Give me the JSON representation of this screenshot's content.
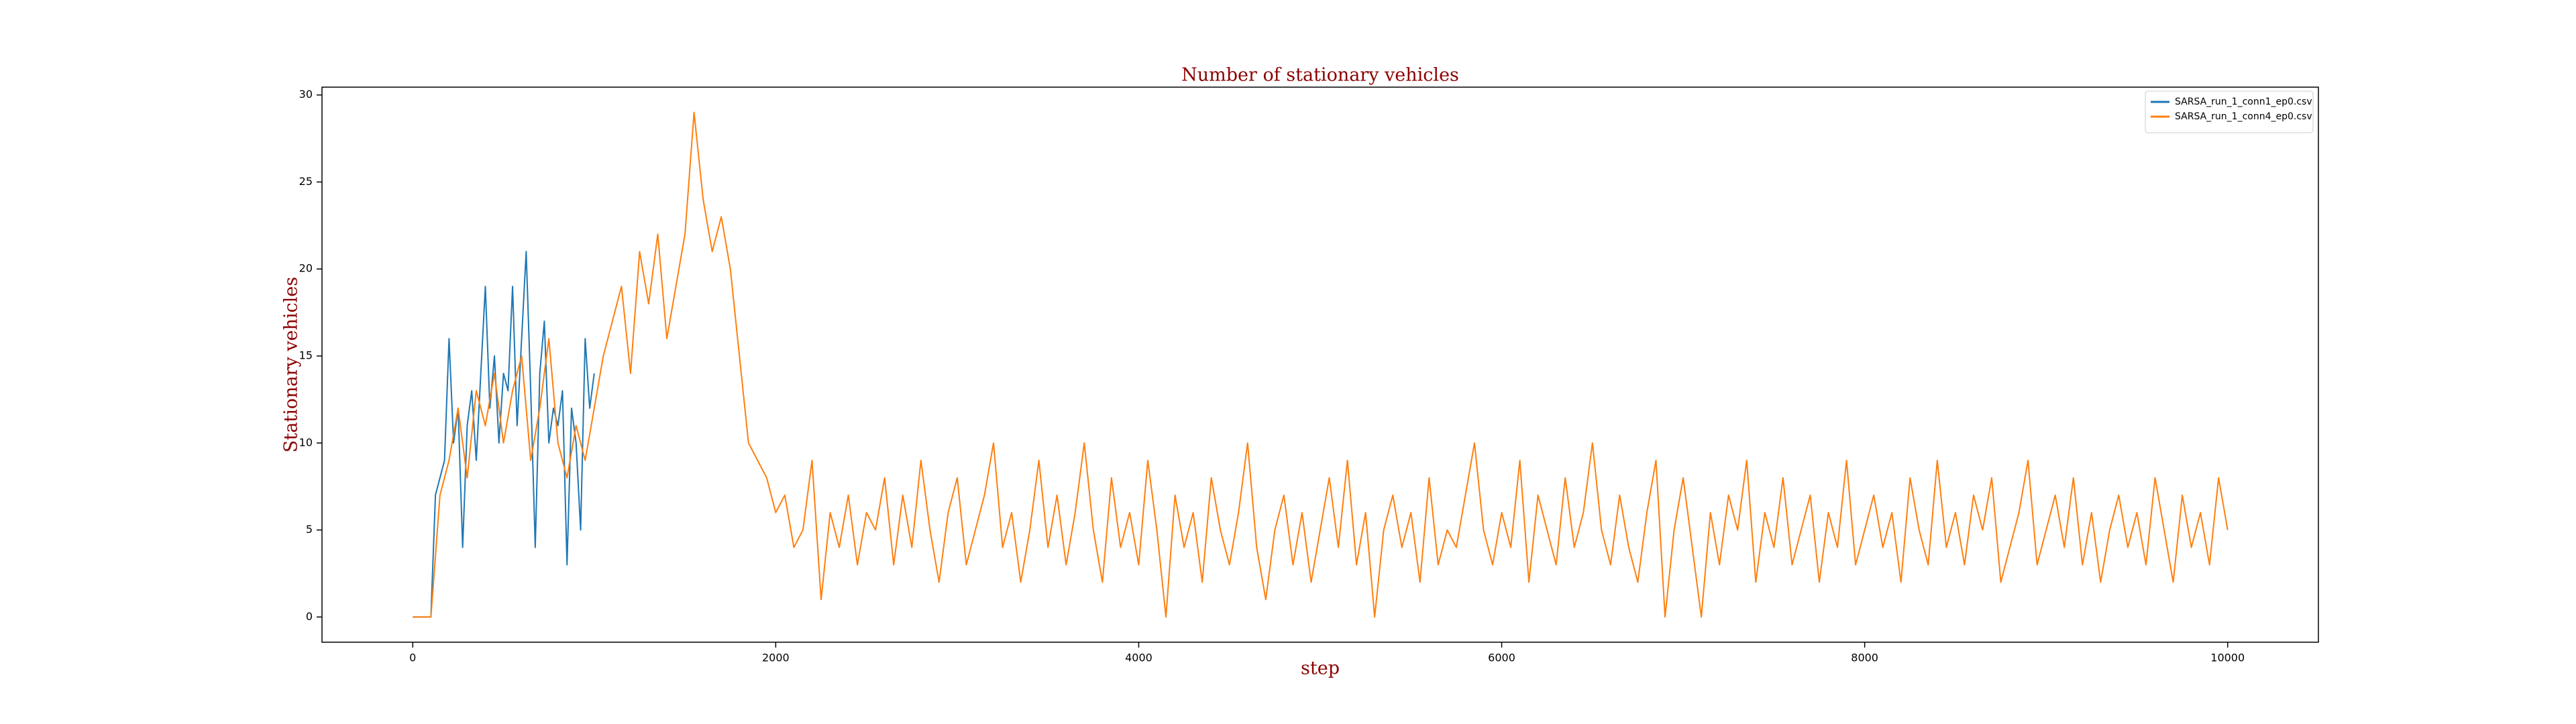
{
  "chart_data": {
    "type": "line",
    "title": "Number of stationary vehicles",
    "xlabel": "step",
    "ylabel": "Stationary vehicles",
    "xlim": [
      -500,
      10500
    ],
    "ylim": [
      -1.45,
      30.45
    ],
    "xticks": [
      0,
      2000,
      4000,
      6000,
      8000,
      10000
    ],
    "yticks": [
      0,
      5,
      10,
      15,
      20,
      25,
      30
    ],
    "grid": false,
    "legend": "upper right",
    "series": [
      {
        "name": "SARSA_run_1_conn1_ep0.csv",
        "color": "#1f77b4",
        "x": [
          0,
          25,
          50,
          75,
          100,
          125,
          150,
          175,
          200,
          225,
          250,
          275,
          300,
          325,
          350,
          375,
          400,
          425,
          450,
          475,
          500,
          525,
          550,
          575,
          600,
          625,
          650,
          675,
          700,
          725,
          750,
          775,
          800,
          825,
          850,
          875,
          900,
          925,
          950,
          975,
          1000
        ],
        "values": [
          0,
          0,
          0,
          0,
          0,
          7,
          8,
          9,
          16,
          10,
          12,
          4,
          11,
          13,
          9,
          14,
          19,
          12,
          15,
          10,
          14,
          13,
          19,
          11,
          16,
          21,
          13,
          4,
          14,
          17,
          10,
          12,
          11,
          13,
          3,
          12,
          10,
          5,
          16,
          12,
          14
        ]
      },
      {
        "name": "SARSA_run_1_conn4_ep0.csv",
        "color": "#ff7f0e",
        "x": [
          0,
          50,
          100,
          150,
          200,
          250,
          300,
          350,
          400,
          450,
          500,
          550,
          600,
          650,
          700,
          750,
          800,
          850,
          900,
          950,
          1000,
          1050,
          1100,
          1150,
          1200,
          1250,
          1300,
          1350,
          1400,
          1450,
          1500,
          1550,
          1600,
          1650,
          1700,
          1750,
          1800,
          1850,
          1900,
          1950,
          2000,
          2050,
          2100,
          2150,
          2200,
          2250,
          2300,
          2350,
          2400,
          2450,
          2500,
          2550,
          2600,
          2650,
          2700,
          2750,
          2800,
          2850,
          2900,
          2950,
          3000,
          3050,
          3100,
          3150,
          3200,
          3250,
          3300,
          3350,
          3400,
          3450,
          3500,
          3550,
          3600,
          3650,
          3700,
          3750,
          3800,
          3850,
          3900,
          3950,
          4000,
          4050,
          4100,
          4150,
          4200,
          4250,
          4300,
          4350,
          4400,
          4450,
          4500,
          4550,
          4600,
          4650,
          4700,
          4750,
          4800,
          4850,
          4900,
          4950,
          5000,
          5050,
          5100,
          5150,
          5200,
          5250,
          5300,
          5350,
          5400,
          5450,
          5500,
          5550,
          5600,
          5650,
          5700,
          5750,
          5800,
          5850,
          5900,
          5950,
          6000,
          6050,
          6100,
          6150,
          6200,
          6250,
          6300,
          6350,
          6400,
          6450,
          6500,
          6550,
          6600,
          6650,
          6700,
          6750,
          6800,
          6850,
          6900,
          6950,
          7000,
          7050,
          7100,
          7150,
          7200,
          7250,
          7300,
          7350,
          7400,
          7450,
          7500,
          7550,
          7600,
          7650,
          7700,
          7750,
          7800,
          7850,
          7900,
          7950,
          8000,
          8050,
          8100,
          8150,
          8200,
          8250,
          8300,
          8350,
          8400,
          8450,
          8500,
          8550,
          8600,
          8650,
          8700,
          8750,
          8800,
          8850,
          8900,
          8950,
          9000,
          9050,
          9100,
          9150,
          9200,
          9250,
          9300,
          9350,
          9400,
          9450,
          9500,
          9550,
          9600,
          9650,
          9700,
          9750,
          9800,
          9850,
          9900,
          9950,
          10000
        ],
        "values": [
          0,
          0,
          0,
          7,
          9,
          12,
          8,
          13,
          11,
          14,
          10,
          13,
          15,
          9,
          12,
          16,
          10,
          8,
          11,
          9,
          12,
          15,
          17,
          19,
          14,
          21,
          18,
          22,
          16,
          19,
          22,
          29,
          24,
          21,
          23,
          20,
          15,
          10,
          9,
          8,
          6,
          7,
          4,
          5,
          9,
          1,
          6,
          4,
          7,
          3,
          6,
          5,
          8,
          3,
          7,
          4,
          9,
          5,
          2,
          6,
          8,
          3,
          5,
          7,
          10,
          4,
          6,
          2,
          5,
          9,
          4,
          7,
          3,
          6,
          10,
          5,
          2,
          8,
          4,
          6,
          3,
          9,
          5,
          0,
          7,
          4,
          6,
          2,
          8,
          5,
          3,
          6,
          10,
          4,
          1,
          5,
          7,
          3,
          6,
          2,
          5,
          8,
          4,
          9,
          3,
          6,
          0,
          5,
          7,
          4,
          6,
          2,
          8,
          3,
          5,
          4,
          7,
          10,
          5,
          3,
          6,
          4,
          9,
          2,
          7,
          5,
          3,
          8,
          4,
          6,
          10,
          5,
          3,
          7,
          4,
          2,
          6,
          9,
          0,
          5,
          8,
          4,
          0,
          6,
          3,
          7,
          5,
          9,
          2,
          6,
          4,
          8,
          3,
          5,
          7,
          2,
          6,
          4,
          9,
          3,
          5,
          7,
          4,
          6,
          2,
          8,
          5,
          3,
          9,
          4,
          6,
          3,
          7,
          5,
          8,
          2,
          4,
          6,
          9,
          3,
          5,
          7,
          4,
          8,
          3,
          6,
          2,
          5,
          7,
          4,
          6,
          3,
          8,
          5,
          2,
          7,
          4,
          6,
          3,
          8,
          5
        ]
      }
    ]
  }
}
